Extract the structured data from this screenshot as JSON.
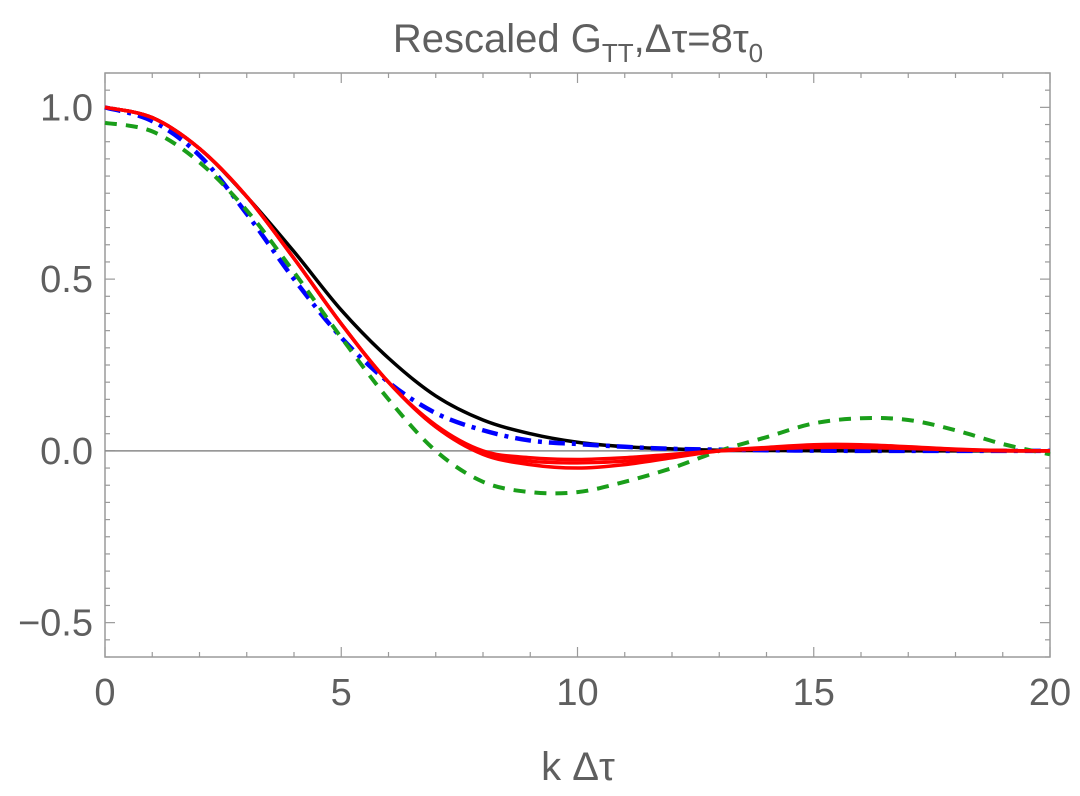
{
  "chart_data": {
    "type": "line",
    "title": "Rescaled G",
    "title_subscript": "TT",
    "title_suffix": ",Δτ=8τ",
    "title_suffix_subscript": "0",
    "xlabel": "k Δτ",
    "ylabel": "",
    "xlim": [
      0,
      20
    ],
    "ylim": [
      -0.6,
      1.1
    ],
    "xticks": [
      0,
      5,
      10,
      15,
      20
    ],
    "xtick_labels": [
      "0",
      "5",
      "10",
      "15",
      "20"
    ],
    "yticks": [
      -0.5,
      0.0,
      0.5,
      1.0
    ],
    "ytick_labels": [
      "−0.5",
      "0.0",
      "0.5",
      "1.0"
    ],
    "grid": false,
    "zero_line": true,
    "series": [
      {
        "name": "black-solid",
        "color": "#000000",
        "style": "solid",
        "x": [
          0,
          1,
          2,
          3,
          4,
          5,
          6,
          7,
          8,
          9,
          10,
          11,
          12,
          13,
          14,
          16,
          18,
          20
        ],
        "values": [
          1.0,
          0.97,
          0.88,
          0.74,
          0.58,
          0.41,
          0.27,
          0.16,
          0.09,
          0.05,
          0.025,
          0.012,
          0.006,
          0.002,
          0.001,
          0.0,
          0.0,
          0.0
        ]
      },
      {
        "name": "blue-dashdot",
        "color": "#0000ff",
        "style": "dashdot",
        "x": [
          0,
          1,
          2,
          3,
          4,
          5,
          6,
          7,
          8,
          9,
          10,
          11,
          12,
          14,
          16,
          18,
          20
        ],
        "values": [
          1.0,
          0.96,
          0.86,
          0.69,
          0.5,
          0.33,
          0.2,
          0.11,
          0.06,
          0.03,
          0.02,
          0.012,
          0.006,
          0.002,
          0.0,
          0.0,
          0.0
        ]
      },
      {
        "name": "green-dashed",
        "color": "#1a9e1a",
        "style": "dashed",
        "x": [
          0,
          1,
          2,
          3,
          4,
          5,
          6,
          7,
          8,
          9,
          10,
          11,
          12,
          13,
          14,
          15,
          16,
          17,
          18,
          19,
          20
        ],
        "values": [
          0.955,
          0.93,
          0.84,
          0.7,
          0.52,
          0.33,
          0.15,
          0.0,
          -0.09,
          -0.12,
          -0.12,
          -0.09,
          -0.05,
          0.0,
          0.04,
          0.08,
          0.095,
          0.09,
          0.06,
          0.02,
          -0.01
        ]
      },
      {
        "name": "red-1",
        "color": "#ff0000",
        "style": "solid",
        "x": [
          0,
          1,
          2,
          3,
          4,
          5,
          6,
          7,
          8,
          9,
          10,
          11,
          12,
          13,
          14,
          15,
          16,
          17,
          18,
          19,
          20
        ],
        "values": [
          1.0,
          0.97,
          0.88,
          0.74,
          0.56,
          0.37,
          0.2,
          0.07,
          -0.01,
          -0.04,
          -0.05,
          -0.04,
          -0.02,
          0.0,
          0.01,
          0.018,
          0.018,
          0.012,
          0.005,
          0.001,
          0.0
        ]
      },
      {
        "name": "red-2",
        "color": "#ff0000",
        "style": "solid",
        "x": [
          0,
          1,
          2,
          3,
          4,
          5,
          6,
          7,
          8,
          9,
          10,
          11,
          12,
          13,
          14,
          15,
          16,
          17,
          18,
          19,
          20
        ],
        "values": [
          1.0,
          0.97,
          0.88,
          0.74,
          0.56,
          0.37,
          0.2,
          0.07,
          -0.005,
          -0.03,
          -0.035,
          -0.03,
          -0.015,
          0.0,
          0.008,
          0.014,
          0.014,
          0.01,
          0.004,
          0.001,
          0.0
        ]
      },
      {
        "name": "red-3",
        "color": "#ff0000",
        "style": "solid",
        "x": [
          0,
          1,
          2,
          3,
          4,
          5,
          6,
          7,
          8,
          9,
          10,
          11,
          12,
          13,
          14,
          15,
          16,
          17,
          18,
          19,
          20
        ],
        "values": [
          1.0,
          0.97,
          0.88,
          0.74,
          0.56,
          0.37,
          0.2,
          0.075,
          0.0,
          -0.02,
          -0.025,
          -0.02,
          -0.01,
          0.0,
          0.006,
          0.01,
          0.01,
          0.007,
          0.003,
          0.0,
          0.0
        ]
      }
    ]
  }
}
